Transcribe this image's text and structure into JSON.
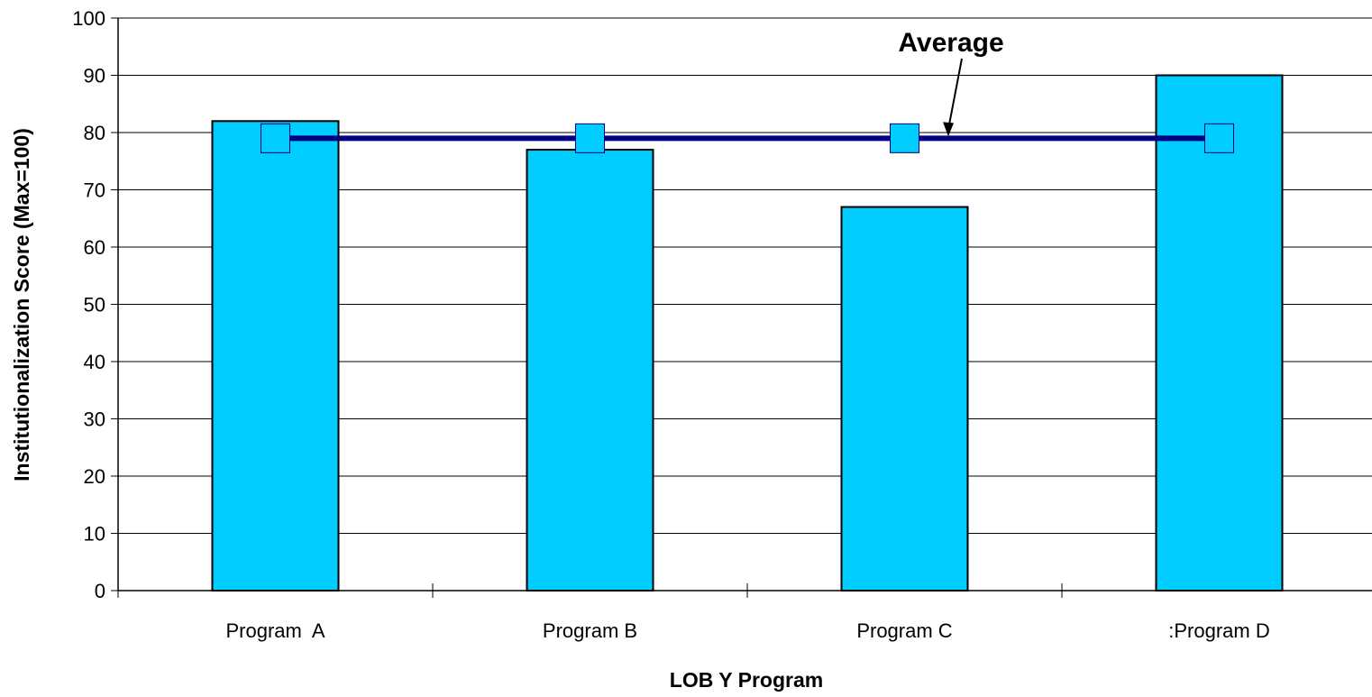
{
  "chart_data": {
    "type": "bar",
    "title": "",
    "xlabel": "LOB Y Program",
    "ylabel": "Institutionalization Score (Max=100)",
    "ylim": [
      0,
      100
    ],
    "yticks": [
      0,
      10,
      20,
      30,
      40,
      50,
      60,
      70,
      80,
      90,
      100
    ],
    "grid": true,
    "categories": [
      "Program  A",
      "Program B",
      "Program C",
      ":Program D"
    ],
    "series": [
      {
        "values": [
          82,
          77,
          67,
          90
        ],
        "color": "#00CCFF"
      }
    ],
    "average": {
      "values": [
        79,
        79,
        79,
        79
      ],
      "line_color": "#000080",
      "marker_color": "#00CCFF",
      "annotation": "Average"
    }
  }
}
